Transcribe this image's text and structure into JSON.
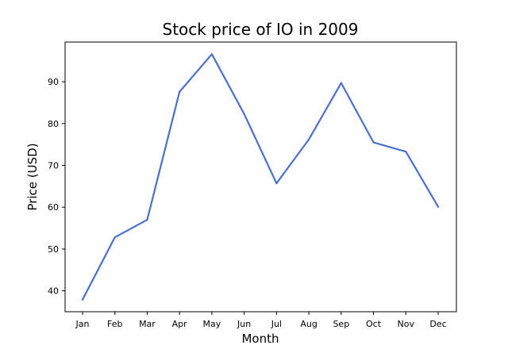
{
  "chart_data": {
    "type": "line",
    "title": "Stock price of IO in 2009",
    "xlabel": "Month",
    "ylabel": "Price (USD)",
    "categories": [
      "Jan",
      "Feb",
      "Mar",
      "Apr",
      "May",
      "Jun",
      "Jul",
      "Aug",
      "Sep",
      "Oct",
      "Nov",
      "Dec"
    ],
    "series": [
      {
        "values": [
          37.9,
          52.8,
          57.0,
          87.6,
          96.6,
          82.3,
          65.7,
          76.2,
          89.7,
          75.5,
          73.3,
          60.1
        ],
        "color": "#4b6fcf"
      }
    ],
    "ylim": [
      35.0,
      99.5
    ],
    "yticks": [
      40,
      50,
      60,
      70,
      80,
      90
    ],
    "grid": false,
    "legend": "none"
  }
}
